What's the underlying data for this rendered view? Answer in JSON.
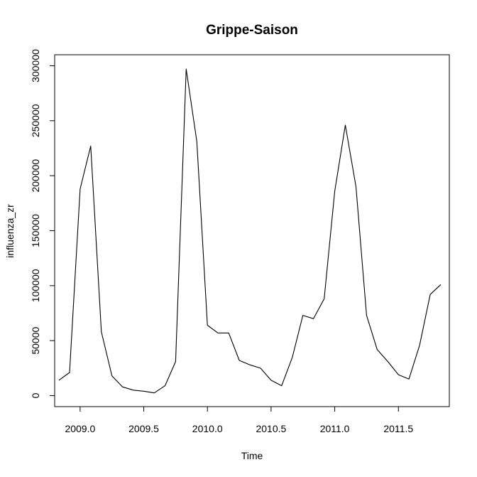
{
  "chart_data": {
    "type": "line",
    "title": "Grippe-Saison",
    "xlabel": "Time",
    "ylabel": "influenza_zr",
    "xlim": [
      2008.8,
      2011.9
    ],
    "ylim": [
      -10000,
      310000
    ],
    "x_ticks": [
      2009.0,
      2009.5,
      2010.0,
      2010.5,
      2011.0,
      2011.5
    ],
    "x_tick_labels": [
      "2009.0",
      "2009.5",
      "2010.0",
      "2010.5",
      "2011.0",
      "2011.5"
    ],
    "y_ticks": [
      0,
      50000,
      100000,
      150000,
      200000,
      250000,
      300000
    ],
    "y_tick_labels": [
      "0",
      "50000",
      "100000",
      "150000",
      "200000",
      "250000",
      "300000"
    ],
    "grid": false,
    "series": [
      {
        "color": "#000000",
        "x": [
          2008.833,
          2008.917,
          2009.0,
          2009.083,
          2009.167,
          2009.25,
          2009.333,
          2009.417,
          2009.5,
          2009.583,
          2009.667,
          2009.75,
          2009.833,
          2009.917,
          2010.0,
          2010.083,
          2010.167,
          2010.25,
          2010.333,
          2010.417,
          2010.5,
          2010.583,
          2010.667,
          2010.75,
          2010.833,
          2010.917,
          2011.0,
          2011.083,
          2011.167,
          2011.25,
          2011.333,
          2011.417,
          2011.5,
          2011.583,
          2011.667,
          2011.75,
          2011.833
        ],
        "values": [
          14000,
          21000,
          188000,
          227000,
          58000,
          18000,
          8000,
          5000,
          4000,
          2500,
          9000,
          31000,
          297000,
          231000,
          64000,
          57000,
          57000,
          32000,
          28000,
          25000,
          14000,
          9000,
          35000,
          73000,
          70000,
          88000,
          186000,
          246000,
          190000,
          73000,
          42000,
          31000,
          19000,
          15000,
          46000,
          92000,
          101000
        ]
      }
    ]
  }
}
